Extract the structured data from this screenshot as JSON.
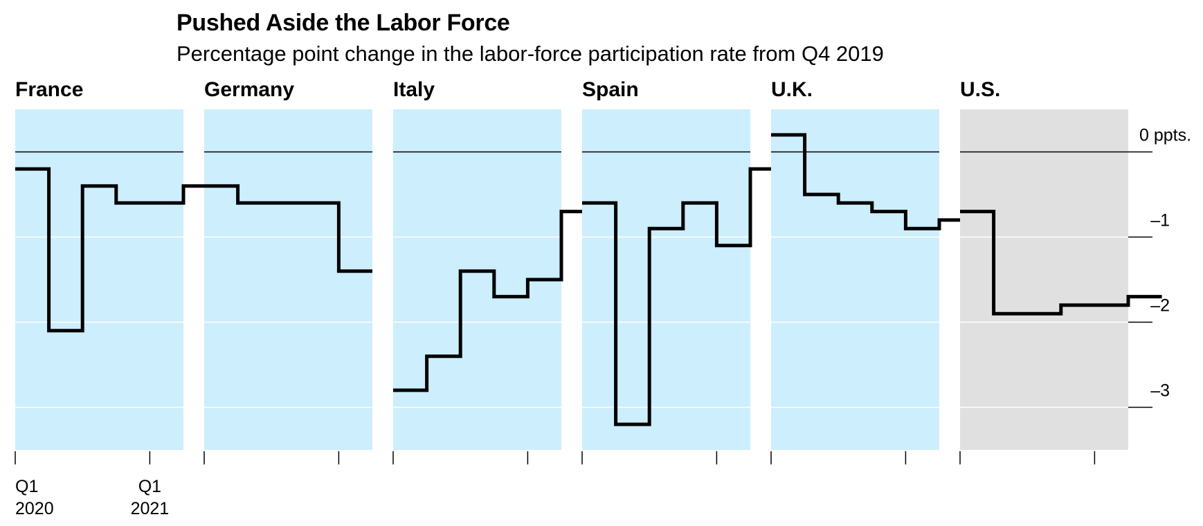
{
  "chart_data": {
    "type": "line",
    "title": "Pushed Aside the Labor Force",
    "subtitle": "Percentage point change in the labor-force participation rate from Q4 2019",
    "xlabel": "",
    "ylabel": "",
    "ylim": [
      -3.5,
      0.5
    ],
    "grid": true,
    "y_ticks": [
      {
        "value": 0,
        "label": "0 ppts."
      },
      {
        "value": -1,
        "label": "–1"
      },
      {
        "value": -2,
        "label": "–2"
      },
      {
        "value": -3,
        "label": "–3"
      }
    ],
    "x_periods": [
      "Q1 2020",
      "Q2 2020",
      "Q3 2020",
      "Q4 2020",
      "Q1 2021",
      "Q2 2021"
    ],
    "x_tick_labels": [
      {
        "index": 0,
        "line1": "Q1",
        "line2": "2020"
      },
      {
        "index": 4,
        "line1": "Q1",
        "line2": "2021"
      }
    ],
    "series": [
      {
        "name": "France",
        "values": [
          -0.2,
          -2.1,
          -0.4,
          -0.6,
          -0.6,
          -0.4
        ],
        "highlight": false
      },
      {
        "name": "Germany",
        "values": [
          -0.4,
          -0.6,
          -0.6,
          -0.6,
          -1.4
        ],
        "highlight": false
      },
      {
        "name": "Italy",
        "values": [
          -2.8,
          -2.4,
          -1.4,
          -1.7,
          -1.5,
          -0.7
        ],
        "highlight": false
      },
      {
        "name": "Spain",
        "values": [
          -0.6,
          -3.2,
          -0.9,
          -0.6,
          -1.1,
          -0.2
        ],
        "highlight": false
      },
      {
        "name": "U.K.",
        "values": [
          0.2,
          -0.5,
          -0.6,
          -0.7,
          -0.9,
          -0.8
        ],
        "highlight": false
      },
      {
        "name": "U.S.",
        "values": [
          -0.7,
          -1.9,
          -1.9,
          -1.8,
          -1.8,
          -1.7
        ],
        "highlight": true
      }
    ],
    "colors": {
      "panel_bg": "#cdeefc",
      "panel_bg_highlight": "#e0e0e0",
      "line": "#000000",
      "gridline": "#ffffff",
      "zero_line": "#000000"
    }
  }
}
